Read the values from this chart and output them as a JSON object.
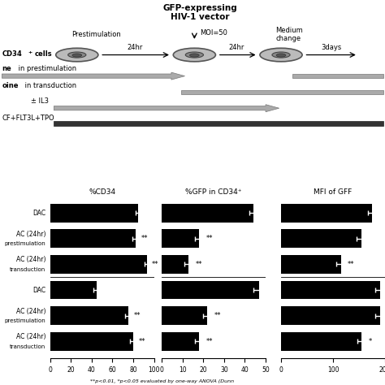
{
  "title_top": "GFP-expressing\nHIV-1 vector",
  "bar_chart1": {
    "title": "%CD34",
    "xlim": [
      0,
      100
    ],
    "xticks": [
      0,
      20,
      40,
      60,
      80,
      100
    ],
    "bars": [
      {
        "label": "DAC",
        "value": 85,
        "error": 3,
        "sig": ""
      },
      {
        "label": "AC (24hr)\nprestimulation",
        "value": 82,
        "error": 3,
        "sig": "**"
      },
      {
        "label": "AC (24hr)\ntransduction",
        "value": 93,
        "error": 2,
        "sig": "**"
      },
      {
        "label": "DAC",
        "value": 45,
        "error": 3,
        "sig": ""
      },
      {
        "label": "AC (24hr)\nprestimulation",
        "value": 75,
        "error": 3,
        "sig": "**"
      },
      {
        "label": "AC (24hr)\ntransduction",
        "value": 80,
        "error": 3,
        "sig": "**"
      }
    ]
  },
  "bar_chart2": {
    "title": "%GFP in CD34⁺",
    "xlim": [
      0,
      50
    ],
    "xticks": [
      0,
      10,
      20,
      30,
      40,
      50
    ],
    "bars": [
      {
        "label": "DAC",
        "value": 44,
        "error": 2,
        "sig": ""
      },
      {
        "label": "AC (24hr)\nprestimulation",
        "value": 18,
        "error": 2,
        "sig": "**"
      },
      {
        "label": "AC (24hr)\ntransduction",
        "value": 13,
        "error": 2,
        "sig": "**"
      },
      {
        "label": "DAC",
        "value": 47,
        "error": 3,
        "sig": ""
      },
      {
        "label": "AC (24hr)\nprestimulation",
        "value": 22,
        "error": 2,
        "sig": "**"
      },
      {
        "label": "AC (24hr)\ntransduction",
        "value": 18,
        "error": 2,
        "sig": "**"
      }
    ]
  },
  "bar_chart3": {
    "title": "MFI of GFF",
    "xlim": [
      0,
      200
    ],
    "xticks": [
      0,
      100,
      200
    ],
    "bars": [
      {
        "label": "DAC",
        "value": 175,
        "error": 8,
        "sig": ""
      },
      {
        "label": "AC (24hr)\nprestimulation",
        "value": 155,
        "error": 10,
        "sig": ""
      },
      {
        "label": "AC (24hr)\ntransduction",
        "value": 115,
        "error": 8,
        "sig": "**"
      },
      {
        "label": "DAC",
        "value": 190,
        "error": 8,
        "sig": ""
      },
      {
        "label": "AC (24hr)\nprestimulation",
        "value": 190,
        "error": 8,
        "sig": ""
      },
      {
        "label": "AC (24hr)\ntransduction",
        "value": 155,
        "error": 8,
        "sig": "*"
      }
    ]
  },
  "footnote": "**p<0.01, *p<0.05 evaluated by one-way ANOVA (Dunn",
  "bar_color": "#000000",
  "bg_color": "#ffffff",
  "arrow_gray": "#aaaaaa",
  "arrow_dark": "#555555",
  "scf_dark": "#333333"
}
